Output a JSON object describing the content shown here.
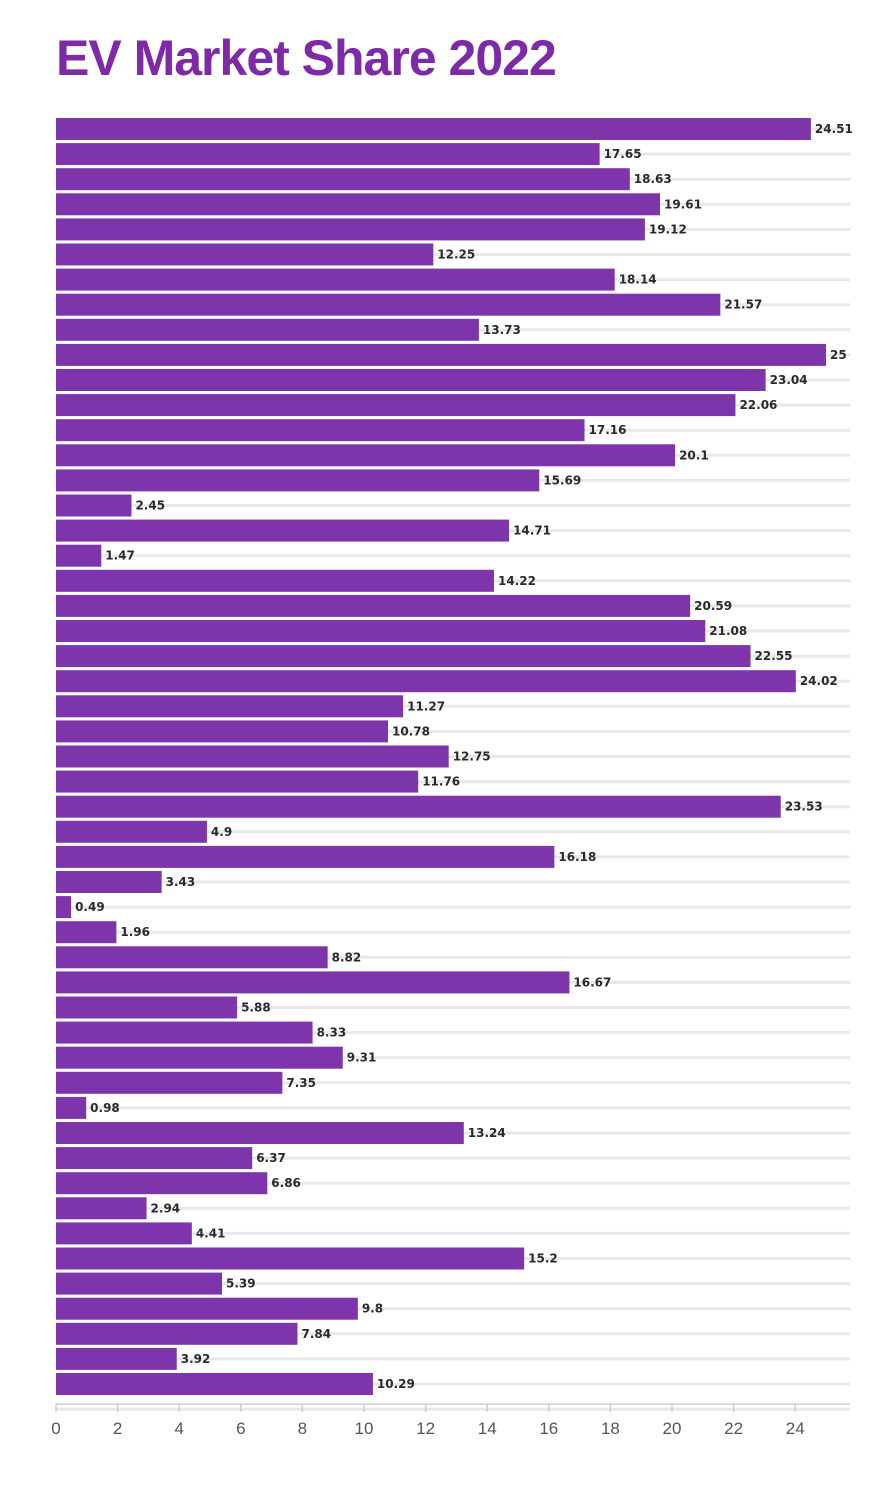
{
  "title": "EV Market Share 2022",
  "colors": {
    "bar": "#7e34aa",
    "title": "#7e2aa8",
    "grid": "#e8e8e8",
    "axis": "#cfcfcf"
  },
  "chart_data": {
    "type": "bar",
    "orientation": "horizontal",
    "title": "EV Market Share 2022",
    "xlabel": "",
    "ylabel": "",
    "xlim": [
      0,
      26
    ],
    "x_ticks": [
      0,
      2,
      4,
      6,
      8,
      10,
      12,
      14,
      16,
      18,
      20,
      22,
      24
    ],
    "grid": "vertical-lines-hidden, horizontal-row-lines-on",
    "legend": "none",
    "values": [
      24.51,
      17.65,
      18.63,
      19.61,
      19.12,
      12.25,
      18.14,
      21.57,
      13.73,
      25,
      23.04,
      22.06,
      17.16,
      20.1,
      15.69,
      2.45,
      14.71,
      1.47,
      14.22,
      20.59,
      21.08,
      22.55,
      24.02,
      11.27,
      10.78,
      12.75,
      11.76,
      23.53,
      4.9,
      16.18,
      3.43,
      0.49,
      1.96,
      8.82,
      16.67,
      5.88,
      8.33,
      9.31,
      7.35,
      0.98,
      13.24,
      6.37,
      6.86,
      2.94,
      4.41,
      15.2,
      5.39,
      9.8,
      7.84,
      3.92,
      10.29
    ]
  }
}
